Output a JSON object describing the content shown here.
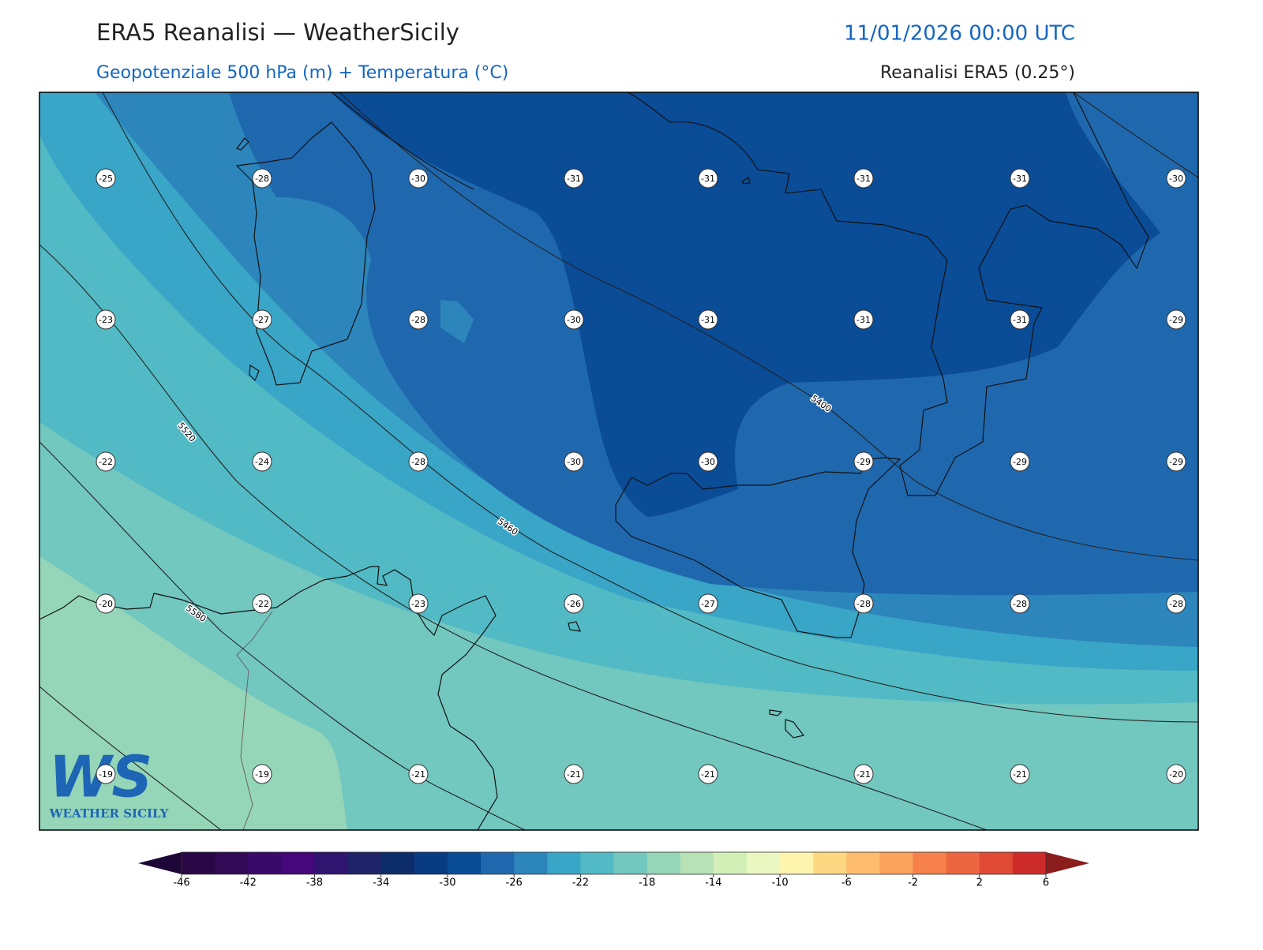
{
  "header": {
    "title": "ERA5 Reanalisi — WeatherSicily",
    "subtitle": "Geopotenziale 500 hPa (m) + Temperatura (°C)",
    "datetime": "11/01/2026 00:00 UTC",
    "source": "Reanalisi ERA5 (0.25°)"
  },
  "map": {
    "temperatures": [
      [
        -25,
        -28,
        -30,
        -31,
        -31,
        -31,
        -31,
        -30
      ],
      [
        -23,
        -27,
        -28,
        -30,
        -31,
        -31,
        -31,
        -29
      ],
      [
        -22,
        -24,
        -28,
        -30,
        -30,
        -29,
        -29,
        -29
      ],
      [
        -20,
        -22,
        -23,
        -26,
        -27,
        -28,
        -28,
        -28
      ],
      [
        -19,
        -19,
        -21,
        -21,
        -21,
        -21,
        -21,
        -20
      ]
    ],
    "contour_labels": [
      5400,
      5460,
      5520,
      5580
    ]
  },
  "colorbar": {
    "levels": [
      -46,
      -44,
      -42,
      -40,
      -38,
      -36,
      -34,
      -32,
      -30,
      -28,
      -26,
      -24,
      -22,
      -20,
      -18,
      -16,
      -14,
      -12,
      -10,
      -8,
      -6,
      -4,
      -2,
      0,
      2,
      4,
      6
    ],
    "colors": [
      "#2a0845",
      "#300a55",
      "#3a0a6a",
      "#45077a",
      "#2f1570",
      "#1f2468",
      "#0c2c6a",
      "#083b80",
      "#0a4c96",
      "#1f68ae",
      "#2c85bb",
      "#39a5c7",
      "#52bac4",
      "#72c7bf",
      "#95d5b8",
      "#b6e2b6",
      "#d3efb8",
      "#ebf7c0",
      "#fff4ae",
      "#fdd882",
      "#fdbc70",
      "#fba15e",
      "#f6814b",
      "#ec6640",
      "#e04a35",
      "#cd2b2a"
    ],
    "extend_colors": [
      "#1e0636",
      "#8b1d1d"
    ],
    "ticks": [
      -46,
      -42,
      -38,
      -34,
      -30,
      -26,
      -22,
      -18,
      -14,
      -10,
      -6,
      -2,
      2,
      6
    ]
  },
  "logo": {
    "mark": "WS",
    "name": "WEATHER SICILY"
  }
}
